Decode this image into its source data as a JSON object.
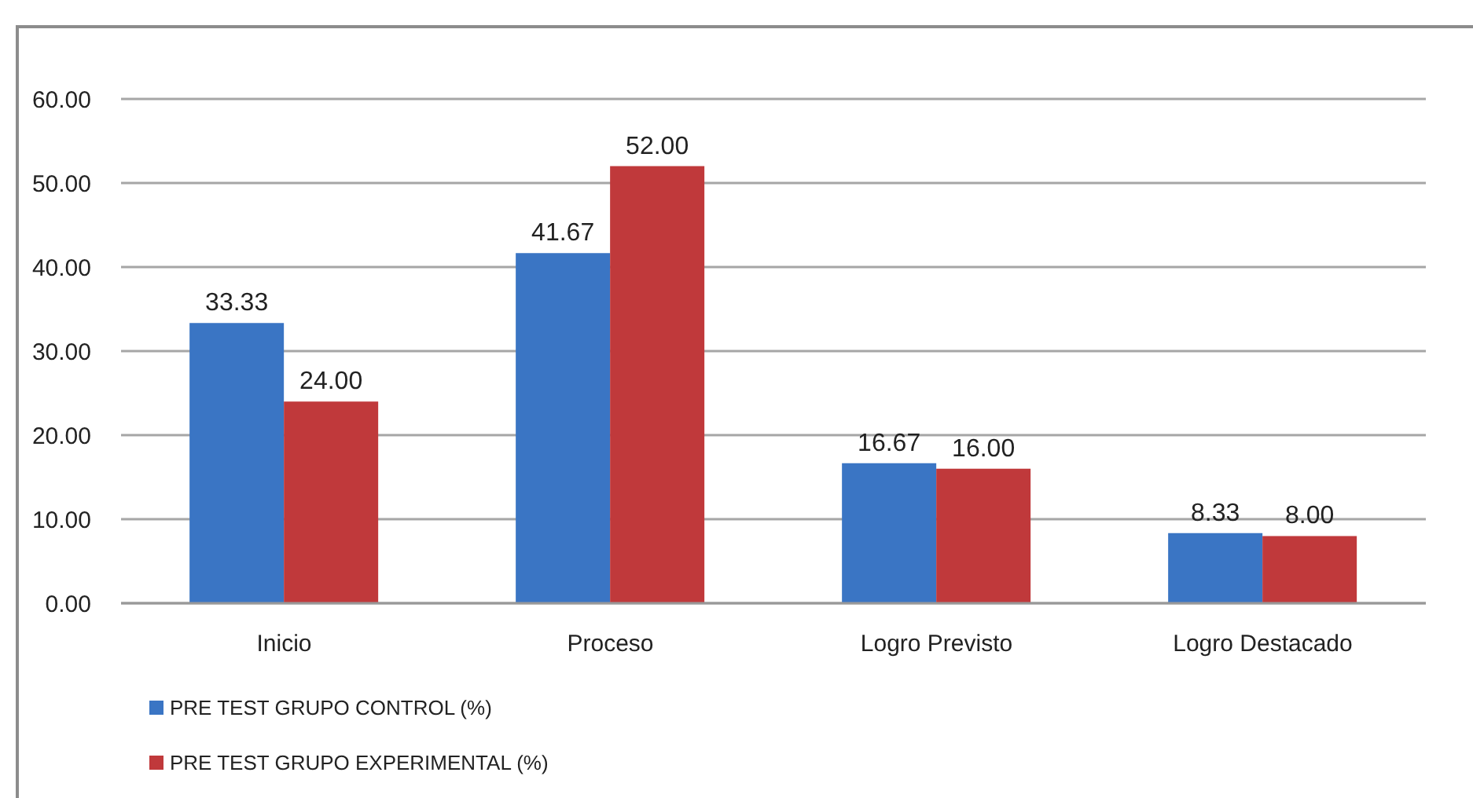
{
  "chart_data": {
    "type": "bar",
    "categories": [
      "Inicio",
      "Proceso",
      "Logro Previsto",
      "Logro Destacado"
    ],
    "series": [
      {
        "name": "PRE TEST GRUPO CONTROL (%)",
        "color": "#3a75c4",
        "values": [
          33.33,
          41.67,
          16.67,
          8.33
        ],
        "value_labels": [
          "33.33",
          "41.67",
          "16.67",
          "8.33"
        ]
      },
      {
        "name": "PRE TEST GRUPO EXPERIMENTAL (%)",
        "color": "#c0393b",
        "values": [
          24,
          52,
          16,
          8
        ],
        "value_labels": [
          "24.00",
          "52.00",
          "16.00",
          "8.00"
        ]
      }
    ],
    "ylim": [
      0,
      60
    ],
    "yticks": [
      {
        "value": 0,
        "label": "0.00"
      },
      {
        "value": 10,
        "label": "10.00"
      },
      {
        "value": 20,
        "label": "20.00"
      },
      {
        "value": 30,
        "label": "30.00"
      },
      {
        "value": 40,
        "label": "40.00"
      },
      {
        "value": 50,
        "label": "50.00"
      },
      {
        "value": 60,
        "label": "60.00"
      }
    ],
    "grid": "y",
    "legend": "bottom left"
  }
}
